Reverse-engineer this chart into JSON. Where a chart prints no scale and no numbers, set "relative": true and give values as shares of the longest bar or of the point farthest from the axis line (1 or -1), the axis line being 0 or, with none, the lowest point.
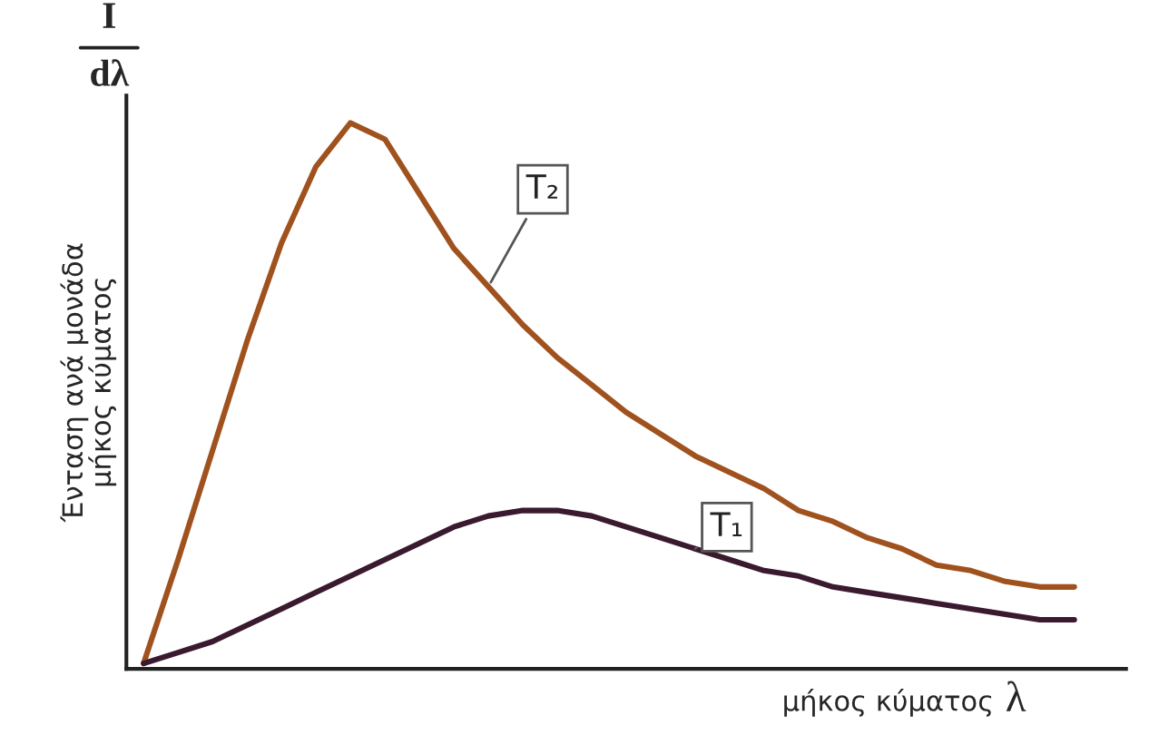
{
  "chart_data": {
    "type": "line",
    "relative": true,
    "ylabel": "Ένταση ανά μονάδα\nμήκος κύματος",
    "xlabel": "μήκος κύματος",
    "annotations": [
      "I\ndλ",
      "λ"
    ],
    "categories": [
      null,
      null,
      null,
      null,
      null,
      null,
      null,
      null,
      null,
      null,
      null,
      null,
      null,
      null,
      null,
      null,
      null,
      null,
      null,
      null,
      null,
      null,
      null,
      null,
      null,
      null,
      null,
      null
    ],
    "series": [
      {
        "name": "T₂",
        "color": "#a0521e",
        "values": [
          0.01,
          0.2,
          0.4,
          0.6,
          0.78,
          0.92,
          1.0,
          0.97,
          0.87,
          0.77,
          0.7,
          0.63,
          0.57,
          0.52,
          0.47,
          0.43,
          0.39,
          0.36,
          0.33,
          0.29,
          0.27,
          0.24,
          0.22,
          0.19,
          0.18,
          0.16,
          0.15,
          0.15
        ]
      },
      {
        "name": "T₁",
        "color": "#3a1a2e",
        "values": [
          0.01,
          0.03,
          0.05,
          0.08,
          0.11,
          0.14,
          0.17,
          0.2,
          0.23,
          0.26,
          0.28,
          0.29,
          0.29,
          0.28,
          0.26,
          0.24,
          0.22,
          0.2,
          0.18,
          0.17,
          0.15,
          0.14,
          0.13,
          0.12,
          0.11,
          0.1,
          0.09,
          0.09
        ]
      }
    ],
    "marker": "none",
    "line_style": "solid"
  }
}
